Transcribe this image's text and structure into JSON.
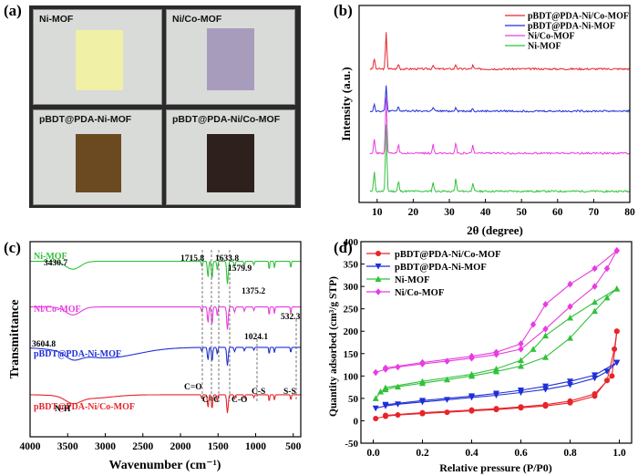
{
  "panel_labels": {
    "a": "(a)",
    "b": "(b)",
    "c": "(c)",
    "d": "(d)"
  },
  "photos": {
    "tiles": [
      {
        "label": "Ni-MOF",
        "color": "#f0f0a6"
      },
      {
        "label": "Ni/Co-MOF",
        "color": "#a89cbd"
      },
      {
        "label": "pBDT@PDA-Ni-MOF",
        "color": "#6b4a22"
      },
      {
        "label": "pBDT@PDA-Ni/Co-MOF",
        "color": "#2e211d"
      }
    ]
  },
  "chart_data": [
    {
      "id": "b",
      "type": "line",
      "title": "",
      "xlabel": "2θ (degree)",
      "ylabel": "Intensity (a.u.)",
      "xlim": [
        5,
        80
      ],
      "xticks": [
        "10",
        "20",
        "30",
        "40",
        "50",
        "60",
        "70",
        "80"
      ],
      "series": [
        {
          "name": "pBDT@PDA-Ni/Co-MOF",
          "color": "#e8242b",
          "baseline": 0.5,
          "amp": 0.9,
          "peaks": [
            [
              9.2,
              0.3
            ],
            [
              12.5,
              1.0
            ],
            [
              15.9,
              0.14
            ],
            [
              25.5,
              0.12
            ],
            [
              31.8,
              0.13
            ],
            [
              36.5,
              0.1
            ]
          ]
        },
        {
          "name": "pBDT@PDA-Ni-MOF",
          "color": "#1f2fd6",
          "baseline": 1.55,
          "amp": 0.9,
          "peaks": [
            [
              9.2,
              0.2
            ],
            [
              12.5,
              0.7
            ],
            [
              15.9,
              0.12
            ],
            [
              25.5,
              0.1
            ],
            [
              31.8,
              0.12
            ],
            [
              36.5,
              0.08
            ]
          ]
        },
        {
          "name": "Ni/Co-MOF",
          "color": "#e83ce0",
          "baseline": 2.6,
          "amp": 0.9,
          "peaks": [
            [
              9.2,
              0.4
            ],
            [
              12.5,
              1.55
            ],
            [
              15.9,
              0.26
            ],
            [
              25.5,
              0.24
            ],
            [
              31.8,
              0.3
            ],
            [
              36.5,
              0.22
            ]
          ]
        },
        {
          "name": "Ni-MOF",
          "color": "#2fc23a",
          "baseline": 3.55,
          "amp": 0.9,
          "peaks": [
            [
              9.2,
              0.55
            ],
            [
              12.5,
              1.85
            ],
            [
              15.9,
              0.28
            ],
            [
              25.5,
              0.26
            ],
            [
              31.8,
              0.34
            ],
            [
              36.5,
              0.24
            ]
          ]
        }
      ]
    },
    {
      "id": "c",
      "type": "line",
      "xlabel": "Wavenumber (cm⁻¹)",
      "ylabel": "Transmittance",
      "xlim": [
        4000,
        400
      ],
      "xticks": [
        "4000",
        "3500",
        "3000",
        "2500",
        "2000",
        "1500",
        "1000",
        "500"
      ],
      "series": [
        {
          "name": "Ni-MOF",
          "color": "#2fc23a",
          "baseline": 0.06
        },
        {
          "name": "Ni/Co-MOF",
          "color": "#e83ce0",
          "baseline": 0.32
        },
        {
          "name": "pBDT@PDA-Ni-MOF",
          "color": "#1f2fd6",
          "baseline": 0.55
        },
        {
          "name": "pBDT@PDA-Ni/Co-MOF",
          "color": "#e8242b",
          "baseline": 0.82
        }
      ],
      "peak_labels": [
        "3430.7",
        "1715.8",
        "1633.8",
        "1579.9",
        "1375.2",
        "3604.8",
        "1024.1",
        "532.3"
      ],
      "bond_labels": [
        "N-H",
        "C=O",
        "C=C",
        "C-O",
        "C-S",
        "S-S"
      ]
    },
    {
      "id": "d",
      "type": "line",
      "xlabel": "Relative pressure (P/P0)",
      "ylabel": "Quantity adsorbed (cm³/g STP)",
      "xlim": [
        -0.05,
        1.05
      ],
      "ylim": [
        -50,
        400
      ],
      "xticks": [
        "0.0",
        "0.2",
        "0.4",
        "0.6",
        "0.8",
        "1.0"
      ],
      "yticks": [
        "-50",
        "0",
        "50",
        "100",
        "150",
        "200",
        "250",
        "300",
        "350",
        "400"
      ],
      "series": [
        {
          "name": "pBDT@PDA-Ni/Co-MOF",
          "color": "#e8242b",
          "marker": "circle",
          "adsorption": [
            [
              0.01,
              5
            ],
            [
              0.05,
              10
            ],
            [
              0.1,
              13
            ],
            [
              0.2,
              16
            ],
            [
              0.3,
              19
            ],
            [
              0.4,
              22
            ],
            [
              0.5,
              25
            ],
            [
              0.6,
              29
            ],
            [
              0.7,
              33
            ],
            [
              0.8,
              40
            ],
            [
              0.9,
              55
            ],
            [
              0.95,
              90
            ],
            [
              0.98,
              160
            ],
            [
              0.99,
              200
            ]
          ],
          "desorption": [
            [
              0.99,
              200
            ],
            [
              0.97,
              100
            ],
            [
              0.9,
              60
            ],
            [
              0.8,
              44
            ],
            [
              0.7,
              36
            ],
            [
              0.6,
              31
            ],
            [
              0.5,
              27
            ],
            [
              0.4,
              24
            ],
            [
              0.2,
              18
            ],
            [
              0.05,
              12
            ]
          ]
        },
        {
          "name": "pBDT@PDA-Ni-MOF",
          "color": "#1f2fd6",
          "marker": "triangle-down",
          "adsorption": [
            [
              0.01,
              28
            ],
            [
              0.05,
              33
            ],
            [
              0.1,
              37
            ],
            [
              0.2,
              42
            ],
            [
              0.3,
              47
            ],
            [
              0.4,
              52
            ],
            [
              0.5,
              57
            ],
            [
              0.6,
              63
            ],
            [
              0.7,
              70
            ],
            [
              0.8,
              80
            ],
            [
              0.9,
              95
            ],
            [
              0.95,
              110
            ],
            [
              0.99,
              130
            ]
          ],
          "desorption": [
            [
              0.99,
              130
            ],
            [
              0.9,
              102
            ],
            [
              0.8,
              88
            ],
            [
              0.7,
              77
            ],
            [
              0.6,
              68
            ],
            [
              0.5,
              61
            ],
            [
              0.4,
              55
            ],
            [
              0.2,
              45
            ],
            [
              0.05,
              36
            ]
          ]
        },
        {
          "name": "Ni-MOF",
          "color": "#2fc23a",
          "marker": "triangle-up",
          "adsorption": [
            [
              0.01,
              50
            ],
            [
              0.03,
              65
            ],
            [
              0.05,
              70
            ],
            [
              0.1,
              76
            ],
            [
              0.2,
              84
            ],
            [
              0.3,
              92
            ],
            [
              0.4,
              100
            ],
            [
              0.5,
              110
            ],
            [
              0.6,
              122
            ],
            [
              0.7,
              142
            ],
            [
              0.8,
              185
            ],
            [
              0.9,
              245
            ],
            [
              0.95,
              275
            ],
            [
              0.99,
              295
            ]
          ],
          "desorption": [
            [
              0.99,
              295
            ],
            [
              0.9,
              265
            ],
            [
              0.8,
              230
            ],
            [
              0.7,
              190
            ],
            [
              0.65,
              160
            ],
            [
              0.6,
              135
            ],
            [
              0.5,
              116
            ],
            [
              0.4,
              104
            ],
            [
              0.2,
              88
            ],
            [
              0.05,
              74
            ]
          ]
        },
        {
          "name": "Ni/Co-MOF",
          "color": "#e83ce0",
          "marker": "diamond",
          "adsorption": [
            [
              0.01,
              108
            ],
            [
              0.05,
              115
            ],
            [
              0.1,
              120
            ],
            [
              0.2,
              127
            ],
            [
              0.3,
              133
            ],
            [
              0.4,
              140
            ],
            [
              0.5,
              148
            ],
            [
              0.6,
              160
            ],
            [
              0.7,
              205
            ],
            [
              0.8,
              255
            ],
            [
              0.9,
              300
            ],
            [
              0.95,
              340
            ],
            [
              0.99,
              380
            ]
          ],
          "desorption": [
            [
              0.99,
              380
            ],
            [
              0.9,
              340
            ],
            [
              0.8,
              305
            ],
            [
              0.7,
              260
            ],
            [
              0.65,
              215
            ],
            [
              0.6,
              172
            ],
            [
              0.5,
              153
            ],
            [
              0.4,
              144
            ],
            [
              0.2,
              130
            ],
            [
              0.05,
              118
            ]
          ]
        }
      ]
    }
  ]
}
